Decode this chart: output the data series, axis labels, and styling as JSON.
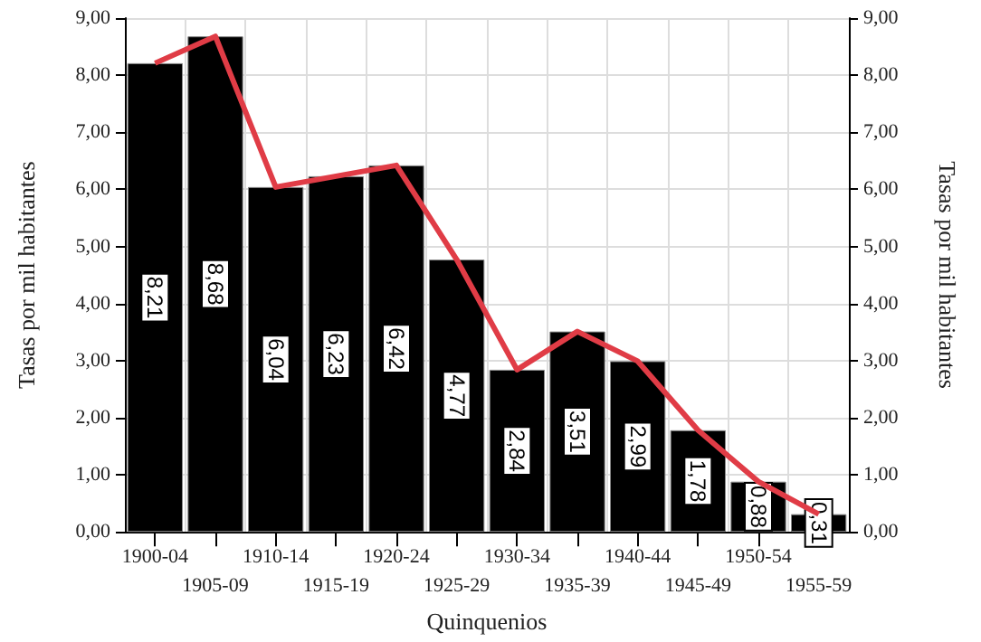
{
  "chart_data": {
    "type": "bar",
    "xlabel": "Quinquenios",
    "ylabel": "Tasas por mil habitantes",
    "y2label": "Tasas por mil habitantes",
    "categories": [
      "1900-04",
      "1905-09",
      "1910-14",
      "1915-19",
      "1920-24",
      "1925-29",
      "1930-34",
      "1935-39",
      "1940-44",
      "1945-49",
      "1950-54",
      "1955-59"
    ],
    "series": [
      {
        "color": "#000000",
        "values": [
          8.21,
          8.68,
          6.04,
          6.23,
          6.42,
          4.77,
          2.84,
          3.51,
          2.99,
          1.78,
          0.88,
          0.31
        ],
        "value_labels": [
          "8,21",
          "8,68",
          "6,04",
          "6,23",
          "6,42",
          "4,77",
          "2,84",
          "3,51",
          "2,99",
          "1,78",
          "0,88",
          "0,31"
        ]
      },
      {
        "type": "line",
        "color": "#e03c46",
        "values": [
          8.21,
          8.68,
          6.04,
          6.23,
          6.42,
          4.77,
          2.84,
          3.51,
          2.99,
          1.78,
          0.88,
          0.31
        ]
      }
    ],
    "ylim": [
      0,
      9
    ],
    "yticks": [
      {
        "value": 0,
        "label": "0,00"
      },
      {
        "value": 1,
        "label": "1,00"
      },
      {
        "value": 2,
        "label": "2,00"
      },
      {
        "value": 3,
        "label": "3,00"
      },
      {
        "value": 4,
        "label": "4,00"
      },
      {
        "value": 5,
        "label": "5,00"
      },
      {
        "value": 6,
        "label": "6,00"
      },
      {
        "value": 7,
        "label": "7,00"
      },
      {
        "value": 8,
        "label": "8,00"
      },
      {
        "value": 9,
        "label": "9,00"
      }
    ],
    "y2lim": [
      0,
      9
    ],
    "y2ticks": [
      {
        "value": 0,
        "label": "0,00"
      },
      {
        "value": 1,
        "label": "1,00"
      },
      {
        "value": 2,
        "label": "2,00"
      },
      {
        "value": 3,
        "label": "3,00"
      },
      {
        "value": 4,
        "label": "4,00"
      },
      {
        "value": 5,
        "label": "5,00"
      },
      {
        "value": 6,
        "label": "6,00"
      },
      {
        "value": 7,
        "label": "7,00"
      },
      {
        "value": 8,
        "label": "8,00"
      },
      {
        "value": 9,
        "label": "9,00"
      }
    ],
    "grid": true,
    "marker": "none",
    "line_style": "solid"
  }
}
